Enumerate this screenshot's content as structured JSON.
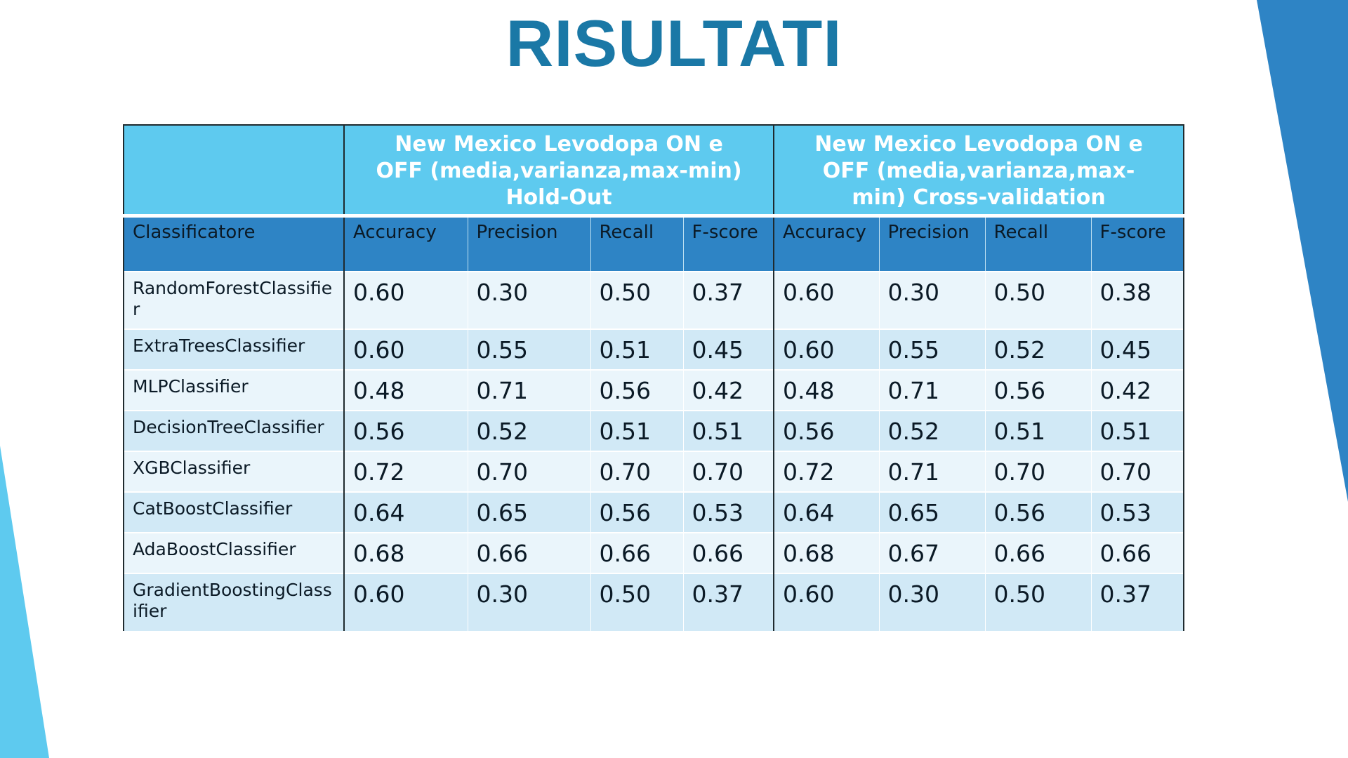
{
  "title": "RISULTATI",
  "colors": {
    "title": "#1a78a6",
    "header_light": "#5ecaef",
    "header_dark": "#2e84c5",
    "row_light": "#eaf5fb",
    "row_dark": "#d1e9f6"
  },
  "table": {
    "group_headers": [
      "",
      "New Mexico Levodopa ON e OFF (media,varianza,max-min) Hold-Out",
      "New Mexico  Levodopa ON e OFF (media,varianza,max-min) Cross-validation"
    ],
    "columns": [
      "Classificatore",
      "Accuracy",
      "Precision",
      "Recall",
      "F-score",
      "Accuracy",
      "Precision",
      "Recall",
      "F-score"
    ],
    "rows": [
      {
        "name": "RandomForestClassifier",
        "values": [
          "0.60",
          "0.30",
          "0.50",
          "0.37",
          "0.60",
          "0.30",
          "0.50",
          "0.38"
        ]
      },
      {
        "name": "ExtraTreesClassifier",
        "values": [
          "0.60",
          "0.55",
          "0.51",
          "0.45",
          "0.60",
          "0.55",
          "0.52",
          "0.45"
        ]
      },
      {
        "name": "MLPClassifier",
        "values": [
          "0.48",
          "0.71",
          "0.56",
          "0.42",
          "0.48",
          "0.71",
          "0.56",
          "0.42"
        ]
      },
      {
        "name": "DecisionTreeClassifier",
        "values": [
          "0.56",
          "0.52",
          "0.51",
          "0.51",
          "0.56",
          "0.52",
          "0.51",
          "0.51"
        ]
      },
      {
        "name": "XGBClassifier",
        "values": [
          "0.72",
          "0.70",
          "0.70",
          "0.70",
          "0.72",
          "0.71",
          "0.70",
          "0.70"
        ]
      },
      {
        "name": "CatBoostClassifier",
        "values": [
          "0.64",
          "0.65",
          "0.56",
          "0.53",
          "0.64",
          "0.65",
          "0.56",
          "0.53"
        ]
      },
      {
        "name": "AdaBoostClassifier",
        "values": [
          "0.68",
          "0.66",
          "0.66",
          "0.66",
          "0.68",
          "0.67",
          "0.66",
          "0.66"
        ]
      },
      {
        "name": "GradientBoostingClassifier",
        "values": [
          "0.60",
          "0.30",
          "0.50",
          "0.37",
          "0.60",
          "0.30",
          "0.50",
          "0.37"
        ]
      }
    ]
  }
}
